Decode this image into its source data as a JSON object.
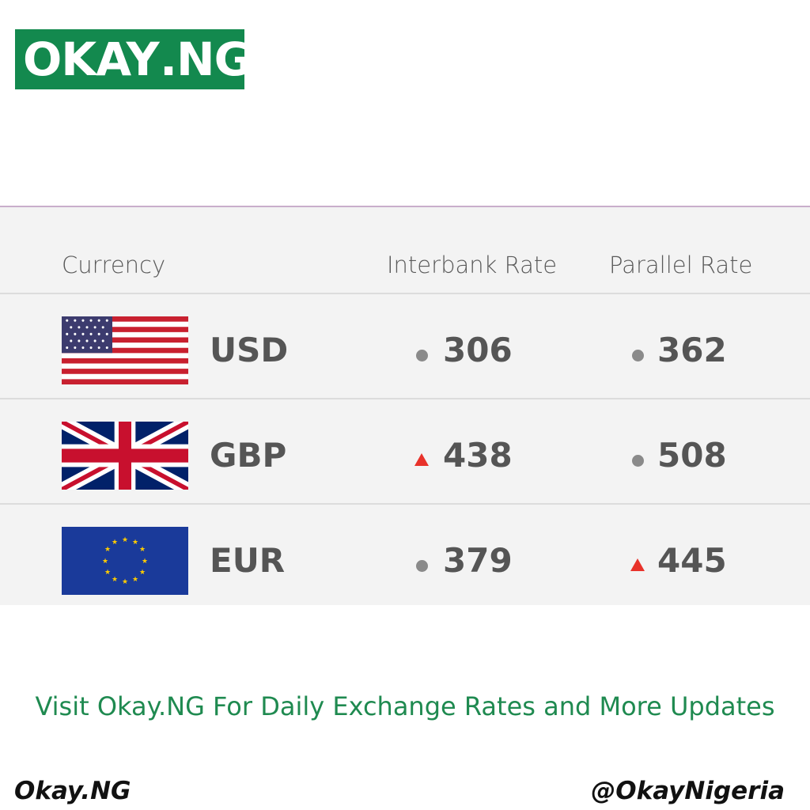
{
  "logo": {
    "left": "OKAY",
    "right": ".NG",
    "color": "#13894e"
  },
  "table": {
    "headers": {
      "currency": "Currency",
      "interbank": "Interbank Rate",
      "parallel": "Parallel Rate"
    },
    "rows": [
      {
        "code": "USD",
        "flag": "us-flag",
        "interbank": "306",
        "interbank_trend": "unchanged",
        "parallel": "362",
        "parallel_trend": "unchanged"
      },
      {
        "code": "GBP",
        "flag": "uk-flag",
        "interbank": "438",
        "interbank_trend": "up",
        "parallel": "508",
        "parallel_trend": "unchanged"
      },
      {
        "code": "EUR",
        "flag": "eu-flag",
        "interbank": "379",
        "interbank_trend": "unchanged",
        "parallel": "445",
        "parallel_trend": "up"
      }
    ]
  },
  "cta": "Visit Okay.NG For Daily Exchange Rates and More Updates",
  "footer": {
    "left": "Okay.NG",
    "right": "@OkayNigeria"
  },
  "colors": {
    "up": "#e8322a",
    "unchanged": "#8a8a8a",
    "cta": "#1f8a50"
  }
}
